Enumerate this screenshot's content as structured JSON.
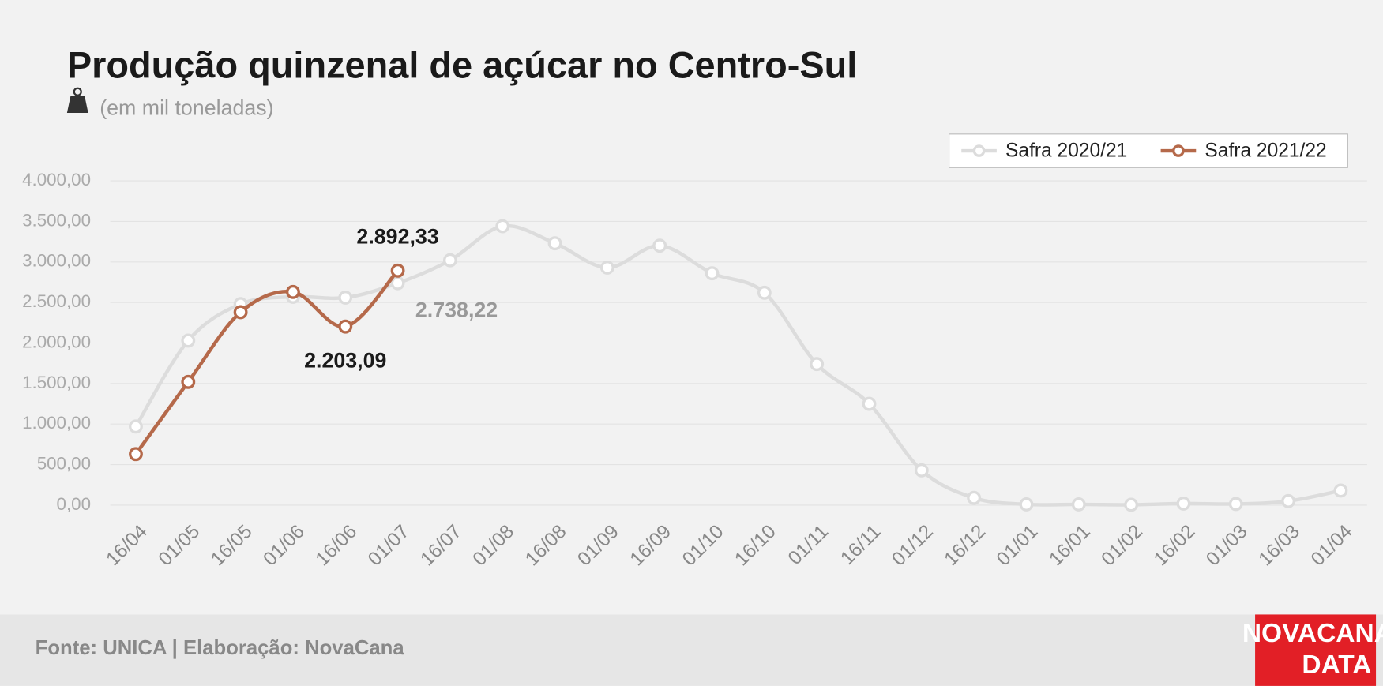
{
  "chart_data": {
    "type": "line",
    "title": "Produção quinzenal de açúcar no Centro-Sul",
    "subtitle": "(em mil toneladas)",
    "source": "Fonte: UNICA | Elaboração: NovaCana",
    "logo": [
      "NOVACANA",
      "DATA"
    ],
    "categories": [
      "16/04",
      "01/05",
      "16/05",
      "01/06",
      "16/06",
      "01/07",
      "16/07",
      "01/08",
      "16/08",
      "01/09",
      "16/09",
      "01/10",
      "16/10",
      "01/11",
      "16/11",
      "01/12",
      "16/12",
      "01/01",
      "16/01",
      "01/02",
      "16/02",
      "01/03",
      "16/03",
      "01/04"
    ],
    "series": [
      {
        "name": "Safra 2020/21",
        "color": "#dcdcdc",
        "values": [
          970,
          2030,
          2480,
          2570,
          2560,
          2738.22,
          3020,
          3440,
          3230,
          2930,
          3200,
          2860,
          2620,
          1740,
          1250,
          430,
          90,
          10,
          10,
          5,
          20,
          15,
          50,
          180
        ],
        "value_labels": [
          null,
          null,
          null,
          null,
          null,
          "2.738,22",
          null,
          null,
          null,
          null,
          null,
          null,
          null,
          null,
          null,
          null,
          null,
          null,
          null,
          null,
          null,
          null,
          null,
          null
        ]
      },
      {
        "name": "Safra 2021/22",
        "color": "#b5694a",
        "values": [
          630,
          1520,
          2380,
          2630,
          2203.09,
          2892.33,
          null,
          null,
          null,
          null,
          null,
          null,
          null,
          null,
          null,
          null,
          null,
          null,
          null,
          null,
          null,
          null,
          null,
          null
        ],
        "value_labels": [
          null,
          null,
          null,
          null,
          "2.203,09",
          "2.892,33",
          null,
          null,
          null,
          null,
          null,
          null,
          null,
          null,
          null,
          null,
          null,
          null,
          null,
          null,
          null,
          null,
          null,
          null
        ]
      }
    ],
    "ylim": [
      0,
      4000
    ],
    "yticks": [
      {
        "value": 0,
        "label": "0,00"
      },
      {
        "value": 500,
        "label": "500,00"
      },
      {
        "value": 1000,
        "label": "1.000,00"
      },
      {
        "value": 1500,
        "label": "1.500,00"
      },
      {
        "value": 2000,
        "label": "2.000,00"
      },
      {
        "value": 2500,
        "label": "2.500,00"
      },
      {
        "value": 3000,
        "label": "3.000,00"
      },
      {
        "value": 3500,
        "label": "3.500,00"
      },
      {
        "value": 4000,
        "label": "4.000,00"
      }
    ],
    "grid": true,
    "legend": "top-right"
  }
}
